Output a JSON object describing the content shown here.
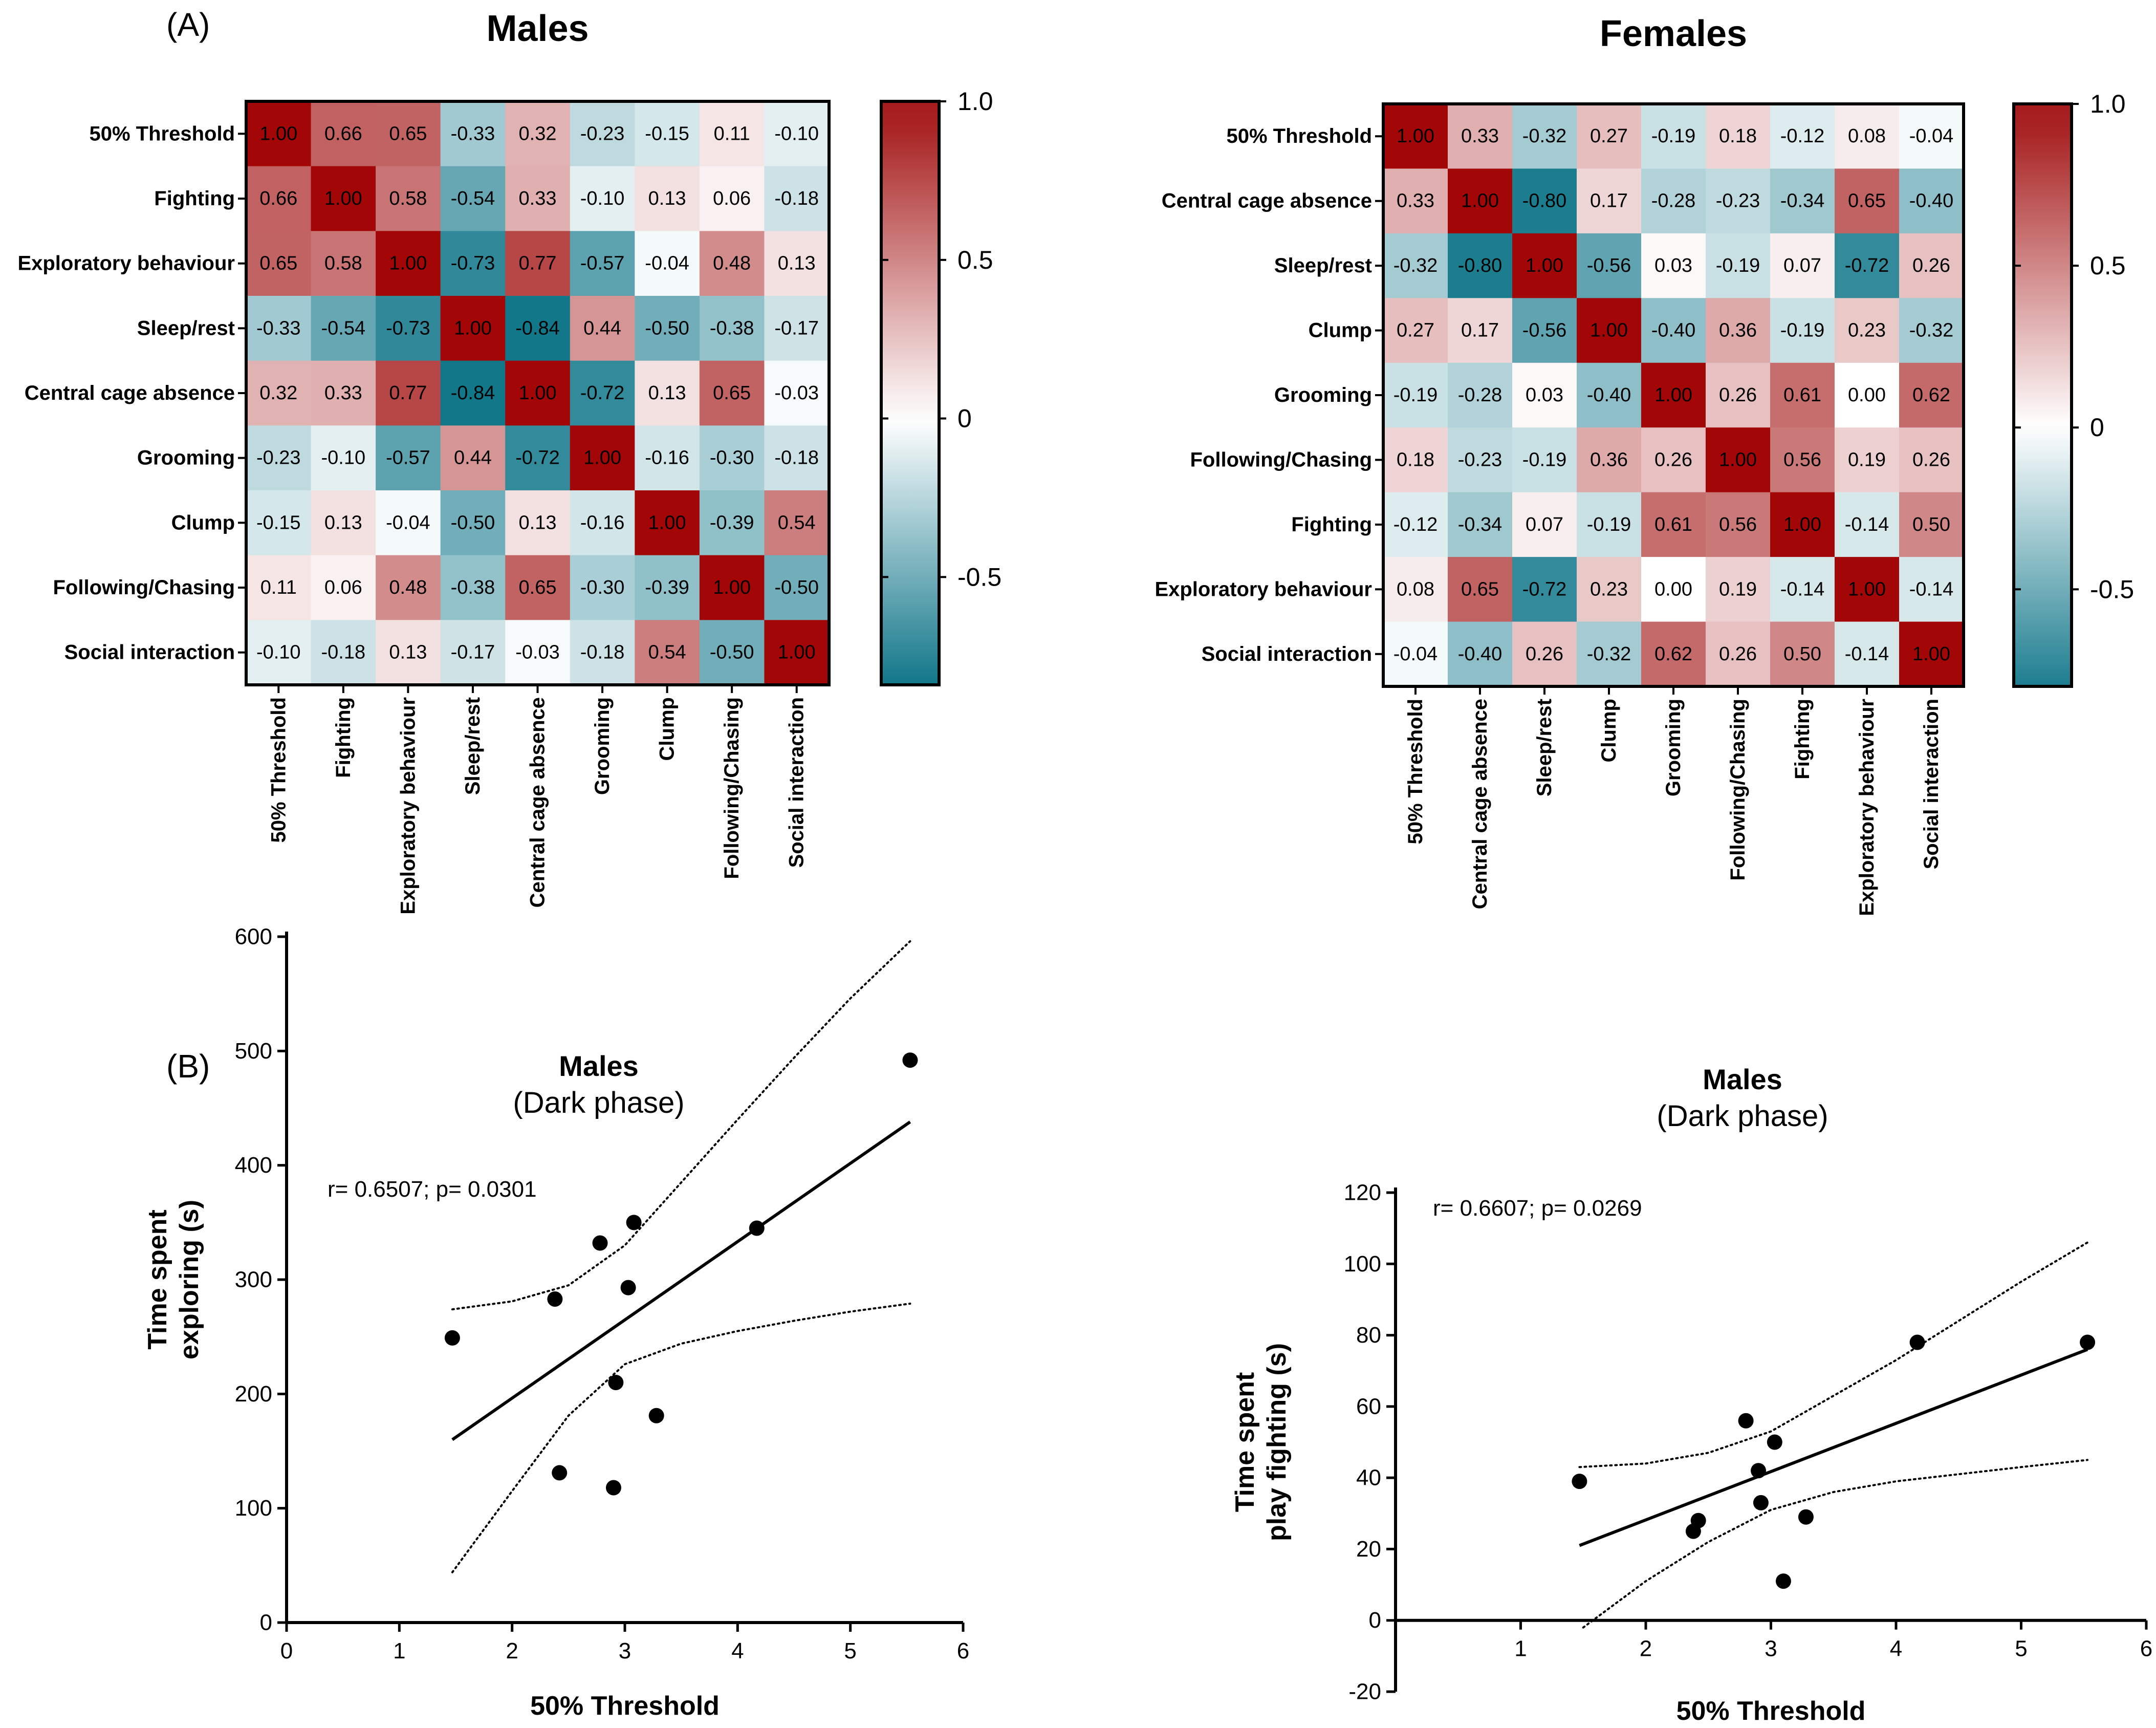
{
  "figure": {
    "panel_a_label": "(A)",
    "panel_b_label": "(B)"
  },
  "colors": {
    "low": "#0e7588",
    "mid": "#ffffff",
    "high": "#a10f0f",
    "diagonal": "#a20606",
    "line": "#000000"
  },
  "chart_data": [
    {
      "type": "heatmap",
      "title": "Males",
      "labels": [
        "50% Threshold",
        "Fighting",
        "Exploratory behaviour",
        "Sleep/rest",
        "Central cage absence",
        "Grooming",
        "Clump",
        "Following/Chasing",
        "Social interaction"
      ],
      "matrix": [
        [
          "1.00",
          "0.66",
          "0.65",
          "-0.33",
          "0.32",
          "-0.23",
          "-0.15",
          "0.11",
          "-0.10"
        ],
        [
          "0.66",
          "1.00",
          "0.58",
          "-0.54",
          "0.33",
          "-0.10",
          "0.13",
          "0.06",
          "-0.18"
        ],
        [
          "0.65",
          "0.58",
          "1.00",
          "-0.73",
          "0.77",
          "-0.57",
          "-0.04",
          "0.48",
          "0.13"
        ],
        [
          "-0.33",
          "-0.54",
          "-0.73",
          "1.00",
          "-0.84",
          "0.44",
          "-0.50",
          "-0.38",
          "-0.17"
        ],
        [
          "0.32",
          "0.33",
          "0.77",
          "-0.84",
          "1.00",
          "-0.72",
          "0.13",
          "0.65",
          "-0.03"
        ],
        [
          "-0.23",
          "-0.10",
          "-0.57",
          "0.44",
          "-0.72",
          "1.00",
          "-0.16",
          "-0.30",
          "-0.18"
        ],
        [
          "-0.15",
          "0.13",
          "-0.04",
          "-0.50",
          "0.13",
          "-0.16",
          "1.00",
          "-0.39",
          "0.54"
        ],
        [
          "0.11",
          "0.06",
          "0.48",
          "-0.38",
          "0.65",
          "-0.30",
          "-0.39",
          "1.00",
          "-0.50"
        ],
        [
          "-0.10",
          "-0.18",
          "0.13",
          "-0.17",
          "-0.03",
          "-0.18",
          "0.54",
          "-0.50",
          "1.00"
        ]
      ],
      "colorbar": {
        "range": [
          -0.84,
          1.0
        ],
        "ticks": [
          1.0,
          0.5,
          0,
          -0.5
        ],
        "tick_labels": [
          "1.0",
          "0.5",
          "0",
          "-0.5"
        ]
      }
    },
    {
      "type": "heatmap",
      "title": "Females",
      "labels": [
        "50% Threshold",
        "Central cage absence",
        "Sleep/rest",
        "Clump",
        "Grooming",
        "Following/Chasing",
        "Fighting",
        "Exploratory behaviour",
        "Social interaction"
      ],
      "matrix": [
        [
          "1.00",
          "0.33",
          "-0.32",
          "0.27",
          "-0.19",
          "0.18",
          "-0.12",
          "0.08",
          "-0.04"
        ],
        [
          "0.33",
          "1.00",
          "-0.80",
          "0.17",
          "-0.28",
          "-0.23",
          "-0.34",
          "0.65",
          "-0.40"
        ],
        [
          "-0.32",
          "-0.80",
          "1.00",
          "-0.56",
          "0.03",
          "-0.19",
          "0.07",
          "-0.72",
          "0.26"
        ],
        [
          "0.27",
          "0.17",
          "-0.56",
          "1.00",
          "-0.40",
          "0.36",
          "-0.19",
          "0.23",
          "-0.32"
        ],
        [
          "-0.19",
          "-0.28",
          "0.03",
          "-0.40",
          "1.00",
          "0.26",
          "0.61",
          "0.00",
          "0.62"
        ],
        [
          "0.18",
          "-0.23",
          "-0.19",
          "0.36",
          "0.26",
          "1.00",
          "0.56",
          "0.19",
          "0.26"
        ],
        [
          "-0.12",
          "-0.34",
          "0.07",
          "-0.19",
          "0.61",
          "0.56",
          "1.00",
          "-0.14",
          "0.50"
        ],
        [
          "0.08",
          "0.65",
          "-0.72",
          "0.23",
          "0.00",
          "0.19",
          "-0.14",
          "1.00",
          "-0.14"
        ],
        [
          "-0.04",
          "-0.40",
          "0.26",
          "-0.32",
          "0.62",
          "0.26",
          "0.50",
          "-0.14",
          "1.00"
        ]
      ],
      "colorbar": {
        "range": [
          -0.8,
          1.0
        ],
        "ticks": [
          1.0,
          0.5,
          0,
          -0.5
        ],
        "tick_labels": [
          "1.0",
          "0.5",
          "0",
          "-0.5"
        ]
      }
    },
    {
      "type": "scatter",
      "title": "Males",
      "subtitle": "(Dark phase)",
      "xlabel": "50% Threshold",
      "ylabel_lines": [
        "Time spent",
        "exploring (s)"
      ],
      "annotation": "r= 0.6507; p= 0.0301",
      "xlim": [
        0,
        6
      ],
      "ylim": [
        0,
        600
      ],
      "xticks": [
        0,
        1,
        2,
        3,
        4,
        5,
        6
      ],
      "yticks": [
        0,
        100,
        200,
        300,
        400,
        500,
        600
      ],
      "points": [
        [
          1.47,
          249
        ],
        [
          2.38,
          283
        ],
        [
          2.42,
          131
        ],
        [
          2.78,
          332
        ],
        [
          2.9,
          118
        ],
        [
          2.92,
          210
        ],
        [
          3.03,
          293
        ],
        [
          3.08,
          350
        ],
        [
          3.28,
          181
        ],
        [
          4.17,
          345
        ],
        [
          5.53,
          492
        ]
      ],
      "fit": {
        "x": [
          1.47,
          5.53
        ],
        "y": [
          160,
          438
        ]
      },
      "ci_upper": {
        "x": [
          1.47,
          2.0,
          2.5,
          3.0,
          3.5,
          4.0,
          4.5,
          5.0,
          5.53
        ],
        "y": [
          274,
          281,
          295,
          330,
          385,
          440,
          494,
          546,
          596
        ]
      },
      "ci_lower": {
        "x": [
          1.47,
          2.0,
          2.5,
          3.0,
          3.5,
          4.0,
          4.5,
          5.0,
          5.53
        ],
        "y": [
          44,
          115,
          181,
          226,
          244,
          255,
          264,
          272,
          279
        ]
      }
    },
    {
      "type": "scatter",
      "title": "Males",
      "subtitle": "(Dark phase)",
      "xlabel": "50% Threshold",
      "ylabel_lines": [
        "Time spent",
        "play fighting (s)"
      ],
      "annotation": "r= 0.6607; p= 0.0269",
      "xlim": [
        0,
        6
      ],
      "ylim": [
        -20,
        120
      ],
      "xticks": [
        1,
        2,
        3,
        4,
        5,
        6
      ],
      "yticks": [
        -20,
        0,
        20,
        40,
        60,
        80,
        100,
        120
      ],
      "points": [
        [
          1.47,
          39
        ],
        [
          2.38,
          25
        ],
        [
          2.42,
          28
        ],
        [
          2.8,
          56
        ],
        [
          2.9,
          42
        ],
        [
          2.92,
          33
        ],
        [
          3.03,
          50
        ],
        [
          3.1,
          11
        ],
        [
          3.28,
          29
        ],
        [
          4.17,
          78
        ],
        [
          5.53,
          78
        ]
      ],
      "fit": {
        "x": [
          1.47,
          5.53
        ],
        "y": [
          21,
          76
        ]
      },
      "ci_upper": {
        "x": [
          1.47,
          2.0,
          2.5,
          3.0,
          3.5,
          4.0,
          4.5,
          5.0,
          5.53
        ],
        "y": [
          43,
          44,
          47,
          53,
          63,
          73,
          84,
          95,
          106
        ]
      },
      "ci_lower": {
        "x": [
          1.5,
          2.0,
          2.5,
          3.0,
          3.5,
          4.0,
          4.5,
          5.0,
          5.53
        ],
        "y": [
          -2,
          11,
          22,
          31,
          36,
          39,
          41,
          43,
          45
        ]
      }
    }
  ]
}
